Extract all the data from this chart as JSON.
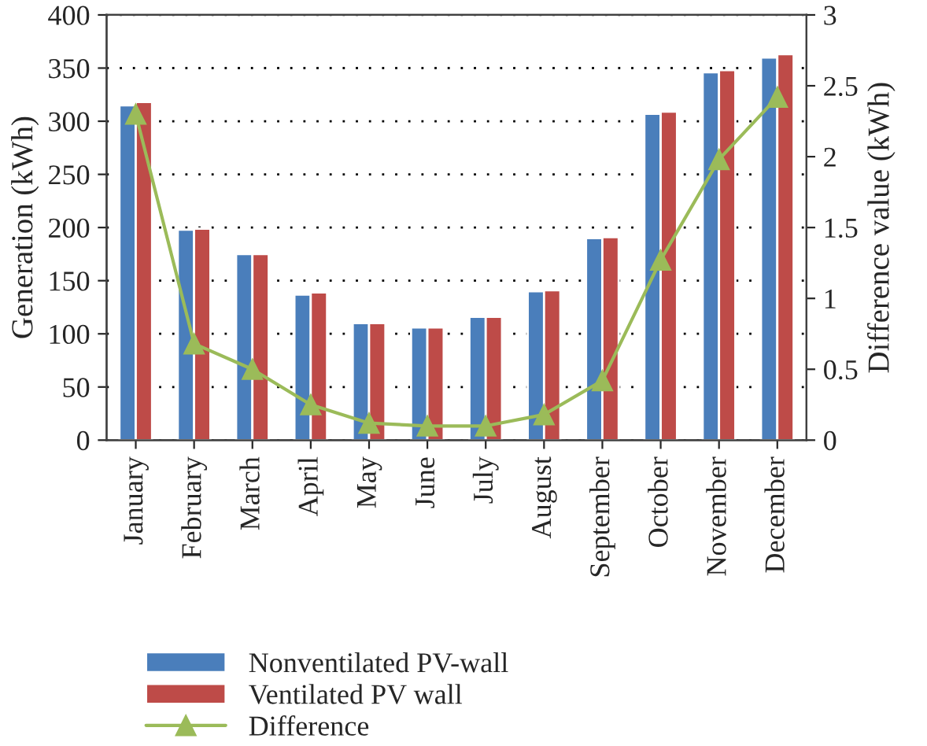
{
  "chart_data": {
    "type": "bar",
    "ylabel": "Generation (kWh)",
    "y2label": "Difference value (kWh)",
    "categories": [
      "January",
      "February",
      "March",
      "April",
      "May",
      "June",
      "July",
      "August",
      "September",
      "October",
      "November",
      "December"
    ],
    "series": [
      {
        "name": "Nonventilated PV-wall",
        "color": "#4a7ebb",
        "values": [
          315,
          198,
          175,
          137,
          110,
          106,
          116,
          140,
          190,
          307,
          346,
          360
        ]
      },
      {
        "name": "Ventilated PV wall",
        "color": "#be4b48",
        "values": [
          318,
          199,
          175,
          139,
          110,
          106,
          116,
          141,
          191,
          309,
          348,
          363
        ]
      },
      {
        "name": "Difference",
        "type": "line",
        "axis": "y2",
        "color": "#9bbb59",
        "marker": "triangle",
        "values": [
          2.3,
          0.68,
          0.5,
          0.25,
          0.12,
          0.1,
          0.1,
          0.18,
          0.42,
          1.27,
          1.98,
          2.42
        ]
      }
    ],
    "ylim": [
      0,
      400
    ],
    "yticks": [
      0,
      50,
      100,
      150,
      200,
      250,
      300,
      350,
      400
    ],
    "y2lim": [
      0,
      3
    ],
    "y2ticks": [
      0,
      0.5,
      1,
      1.5,
      2,
      2.5,
      3
    ],
    "grid": "y",
    "legend": "bottom"
  }
}
